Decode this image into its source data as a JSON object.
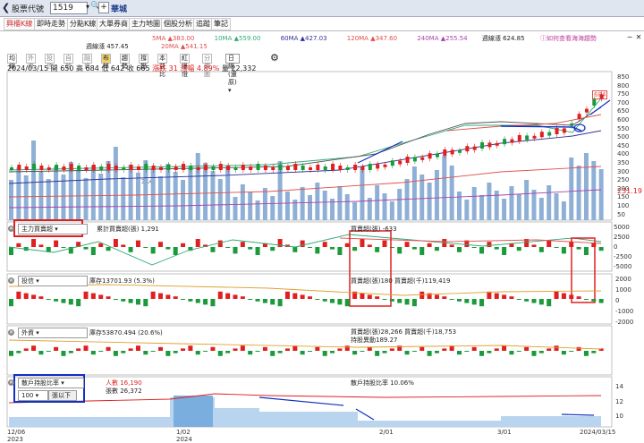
{
  "header": {
    "back": "❮",
    "symbol_label": "股票代號",
    "symbol_value": "1519",
    "dropdown": "▾",
    "search": "🔍",
    "add": "+",
    "stock_name": "華城"
  },
  "tabs": [
    "興櫃K線",
    "即時走勢",
    "分點K線",
    "大單券商",
    "主力地圖",
    "個股分析",
    "追蹤",
    "筆記"
  ],
  "ma_line1": [
    {
      "text": "5MA ▲383.00",
      "color": "#e05050"
    },
    {
      "text": "10MA ▲559.00",
      "color": "#33aa77"
    },
    {
      "text": "60MA ▲427.03",
      "color": "#333399"
    },
    {
      "text": "120MA ▲347.60",
      "color": "#e05050"
    },
    {
      "text": "240MA ▲255.54",
      "color": "#aa44aa"
    },
    {
      "text": "週線漲 624.85",
      "color": "#333"
    }
  ],
  "ma_line2": [
    {
      "text": "週線漲 457.45",
      "color": "#333"
    },
    {
      "text": "20MA ▲541.15",
      "color": "#e05050"
    }
  ],
  "pink_link": "ⓘ如何查看海海趨勢",
  "win_buttons": [
    "−",
    "✕"
  ],
  "toolbar": [
    "均線",
    "外資",
    "投信",
    "自營",
    "融資",
    "布林",
    "趨勢",
    "撐壓",
    "本益比",
    "紅綠燈",
    "分價圖"
  ],
  "toolbar_active": "布林",
  "period": "日線(還原)",
  "ohlc": {
    "date": "2024/03/15",
    "open": "開 650",
    "high": "高 684",
    "low": "低 642",
    "close": "收 665",
    "change": "漲跌 31",
    "pct": "漲幅 4.89%",
    "vol": "量 22,332"
  },
  "price_axis": [
    "850",
    "800",
    "750",
    "700",
    "650",
    "600",
    "550",
    "500",
    "450",
    "400",
    "350",
    "300",
    "250",
    "200",
    "150",
    "100",
    "50"
  ],
  "price_tag": "684",
  "vol_tag": "231.19",
  "low_mark": "314",
  "panel1": {
    "select": "主力買賣超",
    "cum": "累計買賣超(張) 1,291",
    "bs": "買賣超(張) -633",
    "axis": [
      "5000",
      "2500",
      "0",
      "-2500",
      "-5000"
    ]
  },
  "panel2": {
    "select": "投信",
    "hold": "庫存13701.93 (5.3%)",
    "bs": "買賣超(張)180 買賣超(千)119,419",
    "axis": [
      "2000",
      "1000",
      "0",
      "-1000",
      "-2000"
    ]
  },
  "panel3": {
    "select": "外資",
    "hold": "庫存53870.494 (20.6%)",
    "bs": "買賣超(張)28,266 買賣超(千)18,753",
    "bs2": "持股異動189.27"
  },
  "panel4": {
    "select": "散戶持股比率",
    "count": "100",
    "count_suffix": "張以下",
    "people": "人數 16,190",
    "change": "張數 26,372",
    "ratio": "散戶持股比率 10.06%",
    "axis": [
      "14",
      "12",
      "10"
    ]
  },
  "x_axis": [
    {
      "t": "12/06"
    },
    {
      "t": "2023"
    },
    {
      "t": "1/02"
    },
    {
      "t": "2024"
    },
    {
      "t": "2/01"
    },
    {
      "t": "3/01"
    },
    {
      "t": "2024/03/15"
    }
  ],
  "colors": {
    "up": "#e02020",
    "down": "#1a9a3a",
    "vol": "#8fb0d6",
    "highlight": "#e02020",
    "blue": "#1030c0"
  }
}
